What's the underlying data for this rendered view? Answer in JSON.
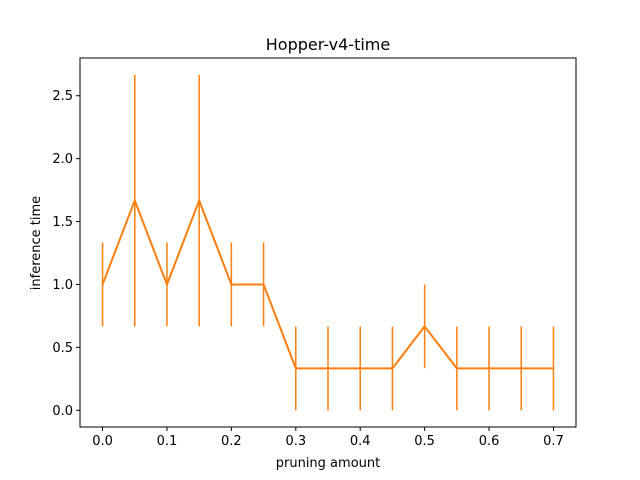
{
  "chart_data": {
    "type": "line",
    "title": "Hopper-v4-time",
    "xlabel": "pruning amount",
    "ylabel": "inference time",
    "x": [
      0.0,
      0.05,
      0.1,
      0.15,
      0.2,
      0.25,
      0.3,
      0.35,
      0.4,
      0.45,
      0.5,
      0.55,
      0.6,
      0.65,
      0.7
    ],
    "series": [
      {
        "values": [
          1.0,
          1.667,
          1.0,
          1.667,
          1.0,
          1.0,
          0.333,
          0.333,
          0.333,
          0.333,
          0.667,
          0.333,
          0.333,
          0.333,
          0.333
        ],
        "error": [
          0.333,
          1.0,
          0.333,
          1.0,
          0.333,
          0.333,
          0.333,
          0.333,
          0.333,
          0.333,
          0.333,
          0.333,
          0.333,
          0.333,
          0.333
        ],
        "color": "#ff7f0e"
      }
    ],
    "xlim": [
      -0.035,
      0.735
    ],
    "ylim": [
      -0.133,
      2.8
    ],
    "xticks": [
      0.0,
      0.1,
      0.2,
      0.3,
      0.4,
      0.5,
      0.6,
      0.7
    ],
    "xtick_labels": [
      "0.0",
      "0.1",
      "0.2",
      "0.3",
      "0.4",
      "0.5",
      "0.6",
      "0.7"
    ],
    "yticks": [
      0.0,
      0.5,
      1.0,
      1.5,
      2.0,
      2.5
    ],
    "ytick_labels": [
      "0.0",
      "0.5",
      "1.0",
      "1.5",
      "2.0",
      "2.5"
    ],
    "grid": false,
    "legend": "none"
  }
}
